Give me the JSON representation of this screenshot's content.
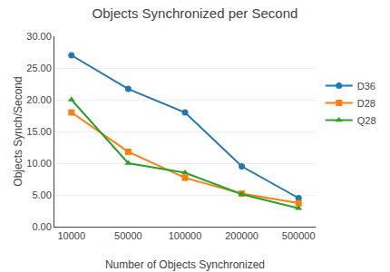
{
  "chart_data": {
    "type": "line",
    "title": "Objects Synchronized per Second",
    "x_label": "Number of Objects Synchronized",
    "y_label": "Objects Synch/Second",
    "categories": [
      "10000",
      "50000",
      "100000",
      "200000",
      "500000"
    ],
    "series": [
      {
        "name": "D36",
        "marker": "circle",
        "values": [
          27.0,
          21.7,
          18.0,
          9.5,
          4.5
        ]
      },
      {
        "name": "D28",
        "marker": "square",
        "values": [
          18.0,
          11.8,
          7.7,
          5.2,
          3.7
        ]
      },
      {
        "name": "Q28",
        "marker": "triangle-up",
        "values": [
          20.0,
          10.0,
          8.5,
          5.1,
          2.9
        ]
      }
    ],
    "ylim": [
      0.0,
      30.0
    ],
    "yticks": [
      {
        "value": 0,
        "label": "0.00"
      },
      {
        "value": 5,
        "label": "5.00"
      },
      {
        "value": 10,
        "label": "10.00"
      },
      {
        "value": 15,
        "label": "15.00"
      },
      {
        "value": 20,
        "label": "20.00"
      },
      {
        "value": 25,
        "label": "25.00"
      },
      {
        "value": 30,
        "label": "30.00"
      }
    ],
    "grid": true,
    "legend": "right"
  }
}
